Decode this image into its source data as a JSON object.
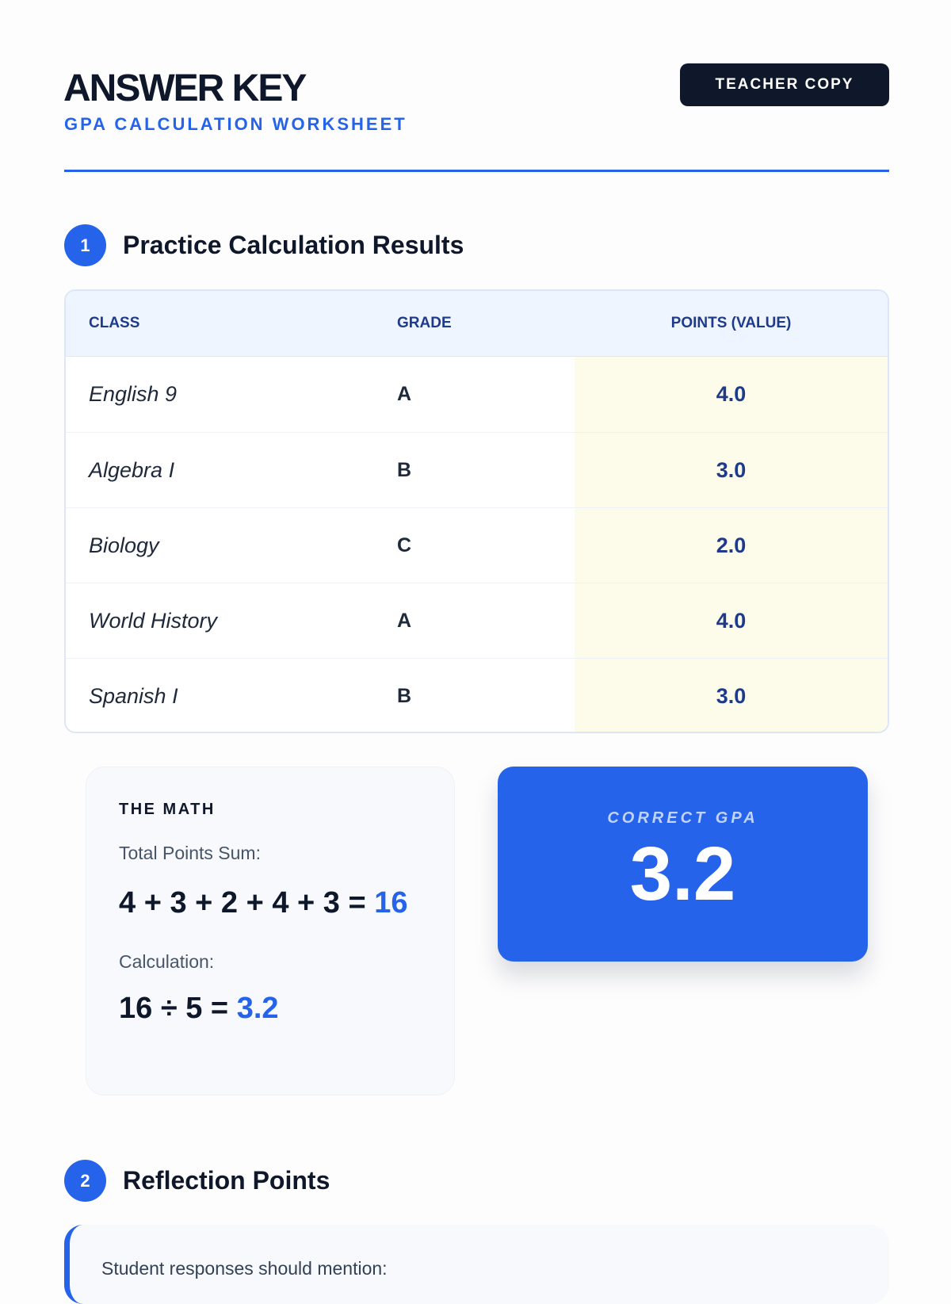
{
  "header": {
    "title": "ANSWER KEY",
    "subtitle": "GPA CALCULATION WORKSHEET",
    "badge": "TEACHER COPY"
  },
  "section1": {
    "number": "1",
    "title": "Practice Calculation Results"
  },
  "table": {
    "columns": [
      "CLASS",
      "GRADE",
      "POINTS (VALUE)"
    ],
    "rows": [
      {
        "class": "English 9",
        "grade": "A",
        "points": "4.0"
      },
      {
        "class": "Algebra I",
        "grade": "B",
        "points": "3.0"
      },
      {
        "class": "Biology",
        "grade": "C",
        "points": "2.0"
      },
      {
        "class": "World History",
        "grade": "A",
        "points": "4.0"
      },
      {
        "class": "Spanish I",
        "grade": "B",
        "points": "3.0"
      }
    ]
  },
  "math": {
    "label": "THE MATH",
    "sum_label": "Total Points Sum:",
    "sum_expr": "4 + 3 + 2 + 4 + 3 =",
    "sum_result": "16",
    "calc_label": "Calculation:",
    "calc_expr": "16 ÷ 5 =",
    "calc_result": "3.2"
  },
  "gpa": {
    "label": "CORRECT GPA",
    "value": "3.2"
  },
  "section2": {
    "number": "2",
    "title": "Reflection Points",
    "intro": "Student responses should mention:"
  },
  "colors": {
    "accent": "#2563eb",
    "dark": "#0f172a",
    "highlight": "#fdfbea"
  }
}
